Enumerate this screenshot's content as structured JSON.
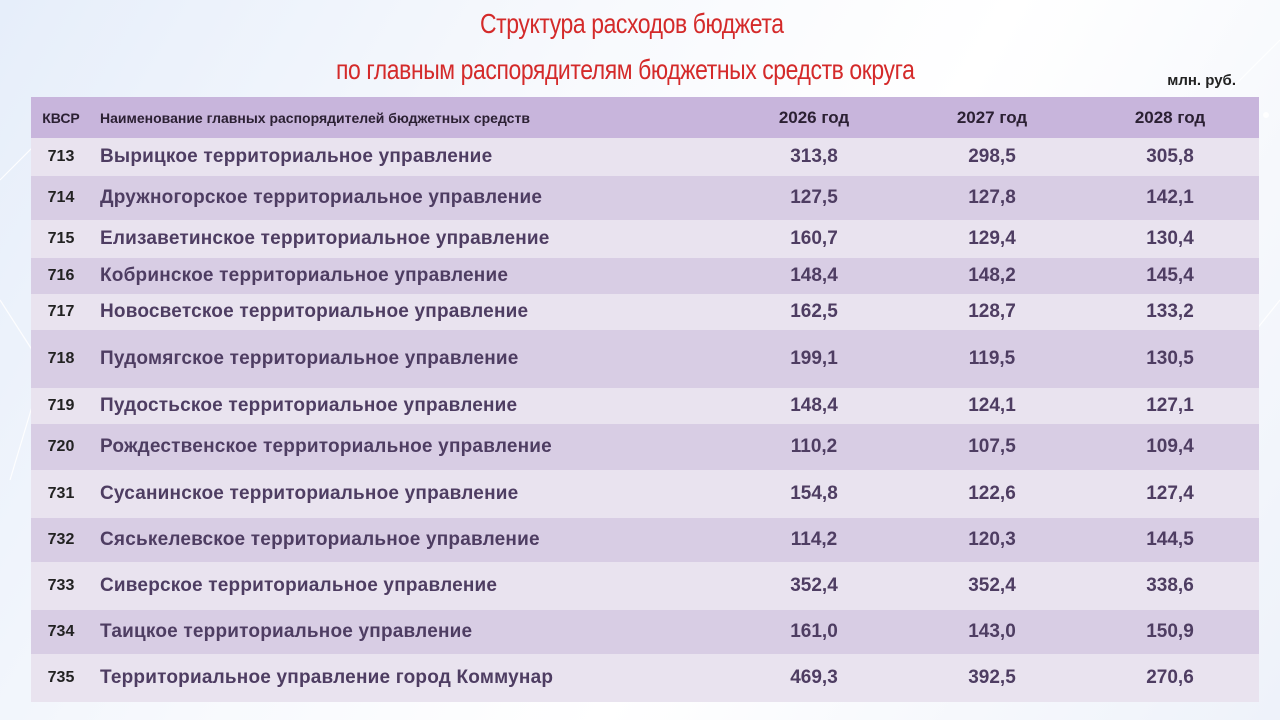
{
  "title": {
    "line1": "Структура расходов бюджета",
    "line2": "по главным распорядителям  бюджетных средств округа"
  },
  "units": "млн. руб.",
  "table": {
    "headers": {
      "kvsr": "КВСР",
      "name": "Наименование главных распорядителей бюджетных средств",
      "y2026": "2026 год",
      "y2027": "2027 год",
      "y2028": "2028 год"
    },
    "rows": [
      {
        "kvsr": "713",
        "name": "Вырицкое территориальное управление",
        "y2026": "313,8",
        "y2027": "298,5",
        "y2028": "305,8"
      },
      {
        "kvsr": "714",
        "name": "Дружногорское территориальное управление",
        "y2026": "127,5",
        "y2027": "127,8",
        "y2028": "142,1"
      },
      {
        "kvsr": "715",
        "name": "Елизаветинское территориальное управление",
        "y2026": "160,7",
        "y2027": "129,4",
        "y2028": "130,4"
      },
      {
        "kvsr": "716",
        "name": "Кобринское территориальное управление",
        "y2026": "148,4",
        "y2027": "148,2",
        "y2028": "145,4"
      },
      {
        "kvsr": "717",
        "name": "Новосветское территориальное управление",
        "y2026": "162,5",
        "y2027": "128,7",
        "y2028": "133,2"
      },
      {
        "kvsr": "718",
        "name": "Пудомягское территориальное управление",
        "y2026": "199,1",
        "y2027": "119,5",
        "y2028": "130,5"
      },
      {
        "kvsr": "719",
        "name": "Пудостьское территориальное управление",
        "y2026": "148,4",
        "y2027": "124,1",
        "y2028": "127,1"
      },
      {
        "kvsr": "720",
        "name": "Рождественское территориальное управление",
        "y2026": "110,2",
        "y2027": "107,5",
        "y2028": "109,4"
      },
      {
        "kvsr": "731",
        "name": "Сусанинское территориальное управление",
        "y2026": "154,8",
        "y2027": "122,6",
        "y2028": "127,4"
      },
      {
        "kvsr": "732",
        "name": "Сяськелевское территориальное управление",
        "y2026": "114,2",
        "y2027": "120,3",
        "y2028": "144,5"
      },
      {
        "kvsr": "733",
        "name": "Сиверское территориальное управление",
        "y2026": "352,4",
        "y2027": "352,4",
        "y2028": "338,6"
      },
      {
        "kvsr": "734",
        "name": "Таицкое территориальное управление",
        "y2026": "161,0",
        "y2027": "143,0",
        "y2028": "150,9"
      },
      {
        "kvsr": "735",
        "name": "Территориальное управление город Коммунар",
        "y2026": "469,3",
        "y2027": "392,5",
        "y2028": "270,6"
      }
    ]
  }
}
